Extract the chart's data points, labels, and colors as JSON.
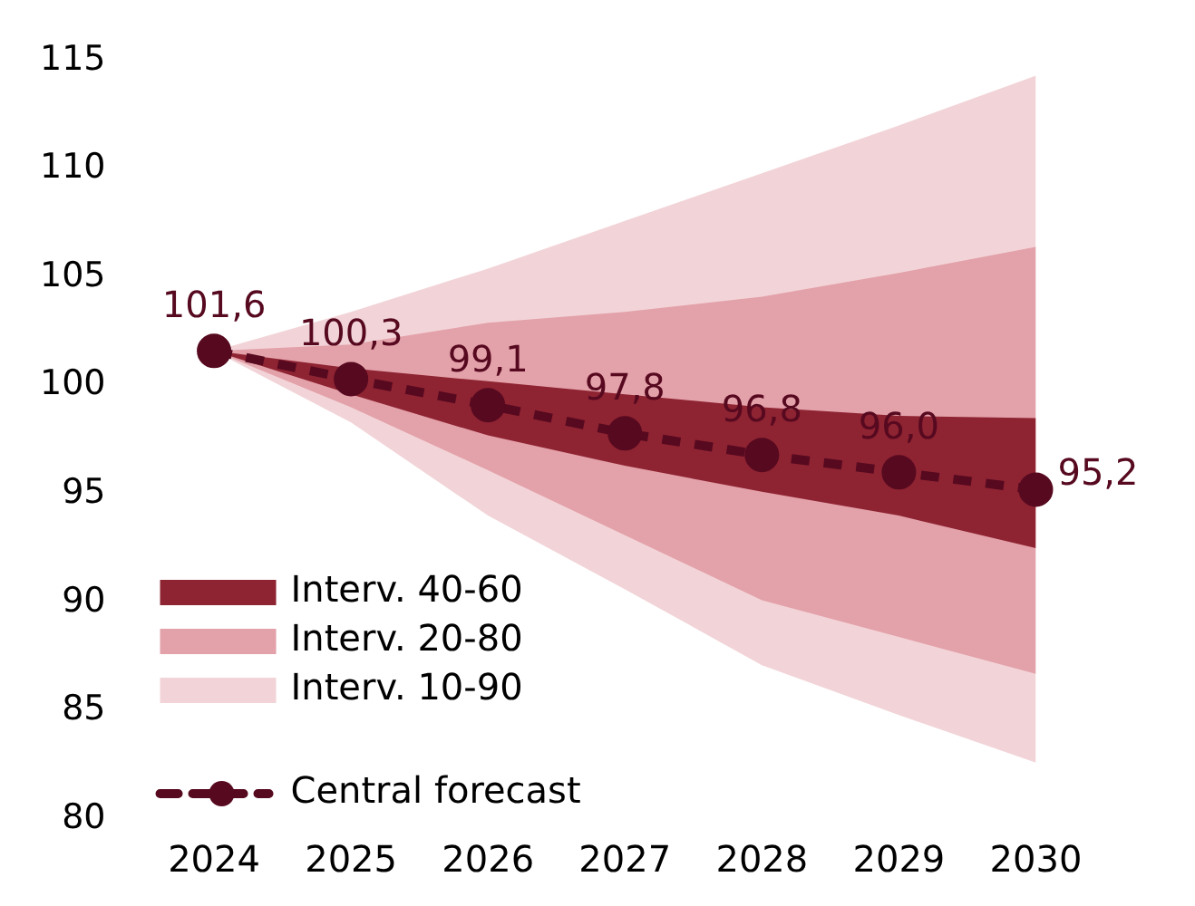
{
  "chart_data": {
    "type": "line",
    "categories": [
      "2024",
      "2025",
      "2026",
      "2027",
      "2028",
      "2029",
      "2030"
    ],
    "ylim": [
      80,
      115
    ],
    "yticks": [
      80,
      85,
      90,
      95,
      100,
      105,
      110,
      115
    ],
    "grid": false,
    "legend": "bottom left",
    "series": [
      {
        "name": "Interv. 10-90",
        "type": "area",
        "color": "#f2d4d8",
        "values": [
          null,
          null,
          null,
          null,
          null,
          null,
          null
        ],
        "lower": [
          101.6,
          98.3,
          94.0,
          90.6,
          87.1,
          84.8,
          82.6
        ],
        "upper": [
          101.6,
          103.4,
          105.4,
          107.6,
          109.8,
          112.0,
          114.3
        ]
      },
      {
        "name": "Interv. 20-80",
        "type": "area",
        "color": "#e3a1a9",
        "values": [
          null,
          null,
          null,
          null,
          null,
          null,
          null
        ],
        "lower": [
          101.6,
          99.0,
          96.1,
          93.1,
          90.1,
          88.4,
          86.7
        ],
        "upper": [
          101.6,
          101.9,
          102.9,
          103.4,
          104.1,
          105.2,
          106.4
        ]
      },
      {
        "name": "Interv. 40-60",
        "type": "area",
        "color": "#8e2332",
        "values": [
          null,
          null,
          null,
          null,
          null,
          null,
          null
        ],
        "lower": [
          101.6,
          99.6,
          97.7,
          96.3,
          95.1,
          94.0,
          92.5
        ],
        "upper": [
          101.6,
          100.8,
          100.2,
          99.6,
          99.0,
          98.6,
          98.5
        ]
      },
      {
        "name": "Central forecast",
        "type": "line",
        "color": "#56091f",
        "marker": "circle",
        "line_style": "dashed",
        "values": [
          101.6,
          100.3,
          99.1,
          97.8,
          96.8,
          96.0,
          95.2
        ],
        "value_labels": [
          "101,6",
          "100,3",
          "99,1",
          "97,8",
          "96,8",
          "96,0",
          "95,2"
        ]
      }
    ]
  }
}
